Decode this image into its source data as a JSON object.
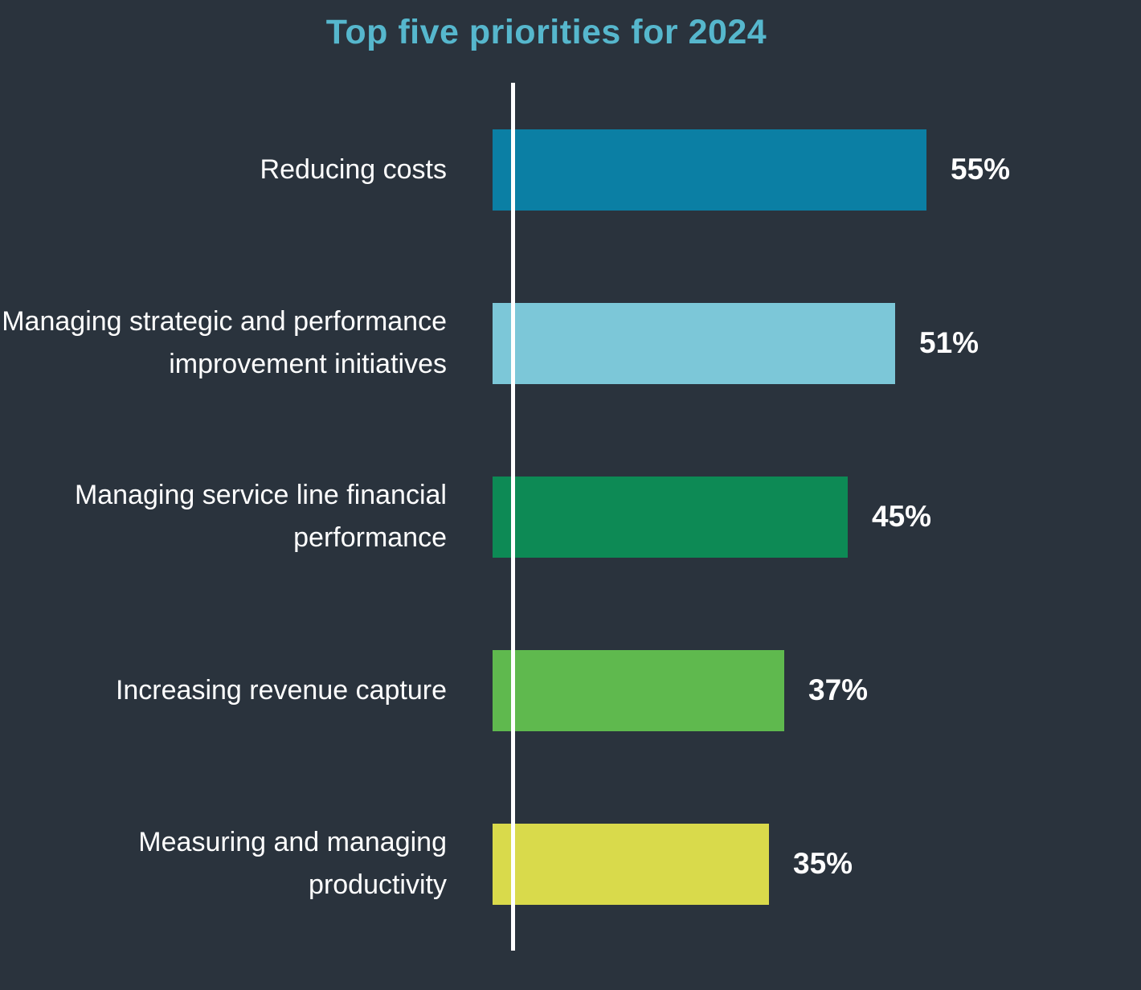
{
  "title": "Top five priorities for 2024",
  "colors": {
    "background": "#2a333d",
    "title_text": "#56b7cd",
    "axis_line": "#ffffff",
    "label_text": "#ffffff",
    "value_text": "#ffffff"
  },
  "chart_data": {
    "type": "bar",
    "orientation": "horizontal",
    "title": "Top five priorities for 2024",
    "categories": [
      "Reducing costs",
      "Managing strategic and performance improvement initiatives",
      "Managing service line financial performance",
      "Increasing revenue capture",
      "Measuring and managing productivity"
    ],
    "values": [
      55,
      51,
      45,
      37,
      35
    ],
    "value_labels": [
      "55%",
      "51%",
      "45%",
      "37%",
      "35%"
    ],
    "bar_colors": [
      "#0b7fa4",
      "#7cc7d8",
      "#0d8a55",
      "#5fb94e",
      "#d9da4b"
    ],
    "unit": "percent",
    "xlim": [
      0,
      60
    ],
    "grid": false,
    "legend": false,
    "value_label_position": "right-of-bar"
  }
}
